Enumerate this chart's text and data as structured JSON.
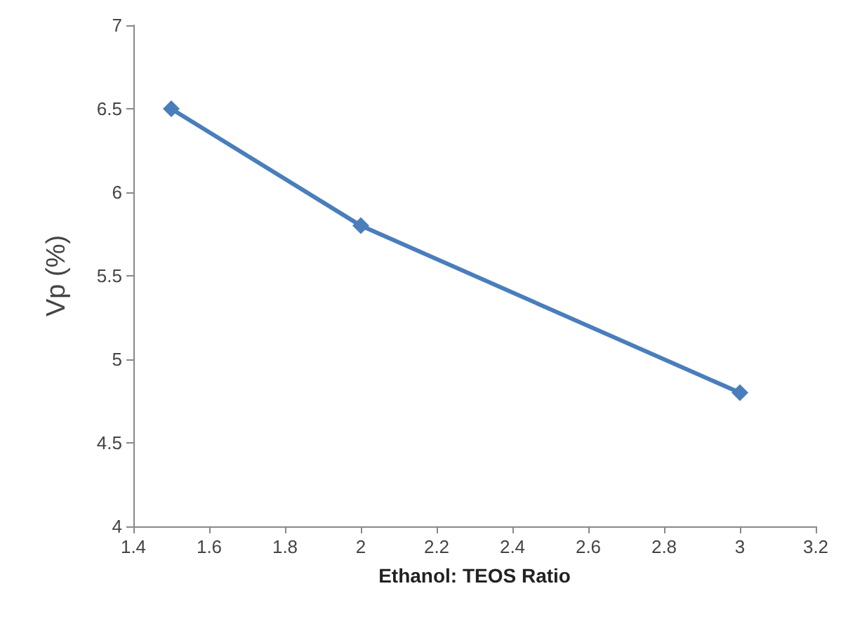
{
  "chart_data": {
    "type": "line",
    "xlabel": "Ethanol: TEOS Ratio",
    "ylabel": "Vp (%)",
    "x": [
      1.5,
      2,
      3
    ],
    "series": [
      {
        "color": "#4a7ebb",
        "values": [
          6.5,
          5.8,
          4.8
        ]
      }
    ],
    "xlim": [
      1.4,
      3.2
    ],
    "xticks": [
      1.4,
      1.6,
      1.8,
      2,
      2.2,
      2.4,
      2.6,
      2.8,
      3,
      3.2
    ],
    "ylim": [
      4,
      7
    ],
    "yticks": [
      4,
      4.5,
      5,
      5.5,
      6,
      6.5,
      7
    ],
    "grid": false,
    "marker": "diamond",
    "line_style": "solid"
  }
}
